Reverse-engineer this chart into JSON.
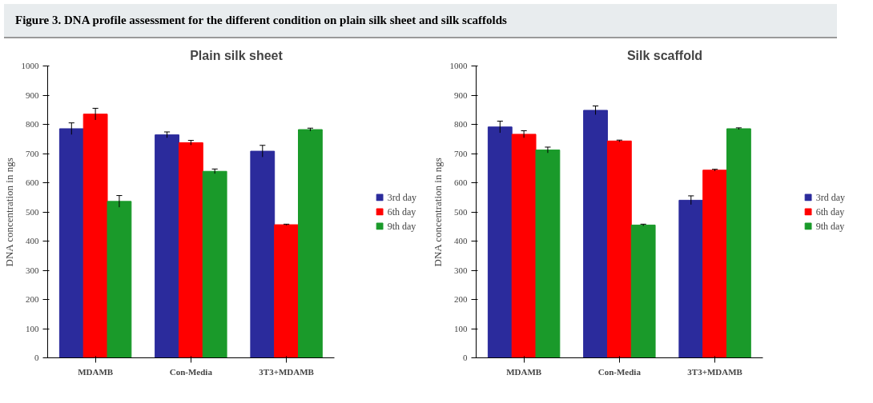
{
  "chart_data": [
    {
      "type": "bar",
      "title": "Plain silk sheet",
      "ylabel": "DNA concentration in ngs",
      "annotations": [
        "Figure 3. DNA profile assessment for the different condition on plain silk sheet and silk scaffolds"
      ],
      "categories": [
        "MDAMB",
        "Con-Media",
        "3T3+MDAMB"
      ],
      "ylim": [
        0,
        1000
      ],
      "yticks": [
        0,
        100,
        200,
        300,
        400,
        500,
        600,
        700,
        800,
        900,
        1000
      ],
      "grid": false,
      "legend": "right",
      "series": [
        {
          "name": "3rd day",
          "color": "#2b2b9c",
          "values": [
            785,
            764,
            708
          ],
          "errors": [
            20,
            10,
            20
          ]
        },
        {
          "name": "6th day",
          "color": "#ff0000",
          "values": [
            835,
            737,
            456
          ],
          "errors": [
            20,
            8,
            2
          ]
        },
        {
          "name": "9th day",
          "color": "#1a9a2a",
          "values": [
            536,
            639,
            782
          ],
          "errors": [
            20,
            8,
            5
          ]
        }
      ]
    },
    {
      "type": "bar",
      "title": "Silk scaffold",
      "ylabel": "DNA concentration in ngs",
      "categories": [
        "MDAMB",
        "Con-Media",
        "3T3+MDAMB"
      ],
      "ylim": [
        0,
        1000
      ],
      "yticks": [
        0,
        100,
        200,
        300,
        400,
        500,
        600,
        700,
        800,
        900,
        1000
      ],
      "grid": false,
      "legend": "right",
      "series": [
        {
          "name": "3rd day",
          "color": "#2b2b9c",
          "values": [
            791,
            848,
            540
          ],
          "errors": [
            20,
            15,
            15
          ]
        },
        {
          "name": "6th day",
          "color": "#ff0000",
          "values": [
            766,
            743,
            643
          ],
          "errors": [
            12,
            3,
            3
          ]
        },
        {
          "name": "9th day",
          "color": "#1a9a2a",
          "values": [
            712,
            455,
            785
          ],
          "errors": [
            10,
            3,
            3
          ]
        }
      ]
    }
  ]
}
